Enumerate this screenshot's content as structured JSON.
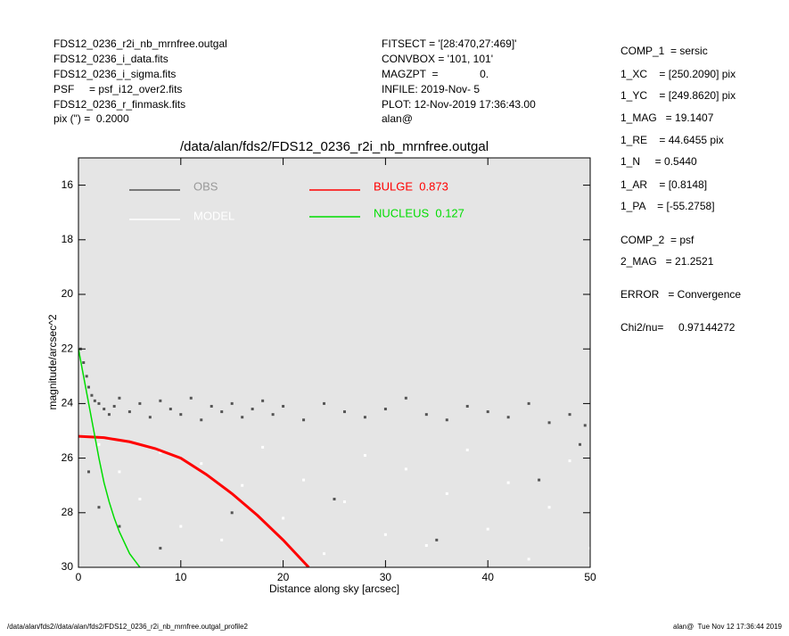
{
  "header": {
    "left": [
      "FDS12_0236_r2i_nb_mrnfree.outgal",
      "FDS12_0236_i_data.fits",
      "FDS12_0236_i_sigma.fits",
      "PSF     = psf_i12_over2.fits",
      "FDS12_0236_r_finmask.fits",
      "pix (\") =  0.2000"
    ],
    "center": [
      "FITSECT = '[28:470,27:469]'",
      "CONVBOX = '101, 101'",
      "MAGZPT  =              0.",
      "INFILE: 2019-Nov- 5",
      "PLOT: 12-Nov-2019 17:36:43.00",
      "alan@"
    ]
  },
  "side_panel": [
    "COMP_1  = sersic",
    "1_XC    = [250.2090] pix",
    "1_YC    = [249.8620] pix",
    "1_MAG   = 19.1407",
    "1_RE    = 44.6455 pix",
    "1_N     = 0.5440",
    "1_AR    = [0.8148]",
    "1_PA    = [-55.2758]",
    "COMP_2  = psf",
    "2_MAG   = 21.2521",
    "ERROR   = Convergence",
    "Chi2/nu=     0.97144272"
  ],
  "footer": {
    "left": "/data/alan/fds2//data/alan/fds2/FDS12_0236_r2i_nb_mrnfree.outgal_profile2",
    "right": "alan@  Tue Nov 12 17:36:44 2019"
  },
  "chart_data": {
    "type": "scatter",
    "title": "/data/alan/fds2/FDS12_0236_r2i_nb_mrnfree.outgal",
    "xlabel": "Distance along sky [arcsec]",
    "ylabel": "magnitude/arcsec^2",
    "xlim": [
      0,
      50
    ],
    "ylim": [
      30,
      15
    ],
    "xticks": [
      0,
      10,
      20,
      30,
      40,
      50
    ],
    "yticks": [
      16,
      18,
      20,
      22,
      24,
      26,
      28,
      30
    ],
    "series": [
      {
        "name": "OBS",
        "kind": "points",
        "color": "#555555",
        "x": [
          0.2,
          0.5,
          0.8,
          1.0,
          1.3,
          1.6,
          2,
          2.5,
          3,
          3.5,
          4,
          5,
          6,
          7,
          8,
          9,
          10,
          11,
          12,
          13,
          14,
          15,
          16,
          17,
          18,
          19,
          20,
          22,
          24,
          26,
          28,
          30,
          32,
          34,
          36,
          38,
          40,
          42,
          44,
          46,
          48,
          49.5,
          1,
          2,
          4,
          8,
          15,
          25,
          35,
          45,
          49
        ],
        "values": [
          22.0,
          22.5,
          23.0,
          23.4,
          23.7,
          23.9,
          24.0,
          24.2,
          24.4,
          24.1,
          23.8,
          24.3,
          24.0,
          24.5,
          23.9,
          24.2,
          24.4,
          23.8,
          24.6,
          24.1,
          24.3,
          24.0,
          24.5,
          24.2,
          23.9,
          24.4,
          24.1,
          24.6,
          24.0,
          24.3,
          24.5,
          24.2,
          23.8,
          24.4,
          24.6,
          24.1,
          24.3,
          24.5,
          24.0,
          24.7,
          24.4,
          24.8,
          26.5,
          27.8,
          28.5,
          29.3,
          28.0,
          27.5,
          29.0,
          26.8,
          25.5
        ]
      },
      {
        "name": "MODEL",
        "kind": "points",
        "color": "#ffffff",
        "x": [
          2,
          4,
          6,
          8,
          10,
          12,
          14,
          16,
          18,
          20,
          22,
          24,
          26,
          28,
          30,
          32,
          34,
          36,
          38,
          40,
          42,
          44,
          46,
          48,
          50
        ],
        "values": [
          25.5,
          26.5,
          27.5,
          25.8,
          28.5,
          26.2,
          29.0,
          27.0,
          25.6,
          28.2,
          26.8,
          29.5,
          27.6,
          25.9,
          28.8,
          26.4,
          29.2,
          27.3,
          25.7,
          28.6,
          26.9,
          29.7,
          27.8,
          26.1,
          29.3
        ]
      },
      {
        "name": "BULGE  0.873",
        "kind": "line",
        "color": "#ff0000",
        "x": [
          0,
          2.5,
          5,
          7.5,
          10,
          12.5,
          15,
          17.5,
          20,
          22.5
        ],
        "values": [
          25.2,
          25.25,
          25.4,
          25.65,
          26.0,
          26.6,
          27.3,
          28.1,
          29.0,
          30.0
        ]
      },
      {
        "name": "NUCLEUS  0.127",
        "kind": "line",
        "color": "#00dd00",
        "x": [
          0,
          0.5,
          1,
          1.5,
          2,
          2.5,
          3,
          3.5,
          4,
          5,
          6
        ],
        "values": [
          22.0,
          23.0,
          24.0,
          25.0,
          26.0,
          26.9,
          27.6,
          28.2,
          28.7,
          29.5,
          30.0
        ]
      }
    ]
  }
}
